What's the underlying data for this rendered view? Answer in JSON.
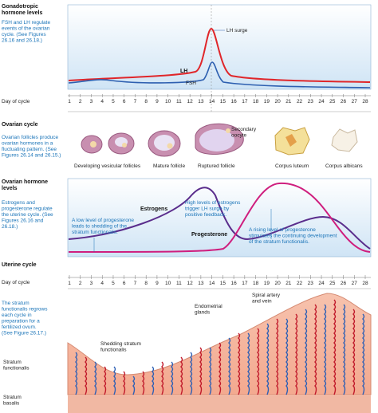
{
  "gonadotropic": {
    "title": [
      "Gonadotropic",
      "hormone levels"
    ],
    "note": [
      "FSH and LH regulate",
      "events of the ovarian",
      "cycle. (See Figures",
      "26.16 and 26.18.)"
    ],
    "lh_surge": "LH surge",
    "lh": "LH",
    "fsh": "FSH",
    "axis_label": "Day of cycle"
  },
  "days": [
    1,
    2,
    3,
    4,
    5,
    6,
    7,
    8,
    9,
    10,
    11,
    12,
    13,
    14,
    15,
    16,
    17,
    18,
    19,
    20,
    21,
    22,
    23,
    24,
    25,
    26,
    27,
    28
  ],
  "ovarian": {
    "title": "Ovarian cycle",
    "note": [
      "Ovarian follicles produce",
      "ovarian hormones in a",
      "fluctuating pattern. (See",
      "Figures 26.14 and 26.15.)"
    ],
    "secondary_oocyte": [
      "Secondary",
      "oocyte"
    ],
    "developing": "Developing vesicular follicles",
    "mature": "Mature follicle",
    "ruptured": "Ruptured follicle",
    "luteum": "Corpus luteum",
    "albicans": "Corpus albicans"
  },
  "ovarian_hormones": {
    "title": [
      "Ovarian hormone",
      "levels"
    ],
    "note": [
      "Estrogens and",
      "progesterone regulate",
      "the uterine cycle. (See",
      "Figures 26.16 and",
      "26.18.)"
    ],
    "estrogens": "Estrogens",
    "progesterone": "Progesterone",
    "high_estrogen": [
      "High levels of estrogens",
      "trigger LH surge by",
      "positive feedback."
    ],
    "low_progesterone": [
      "A low level of progesterone",
      "leads to shedding of the",
      "stratum functionalis."
    ],
    "rising_progesterone": [
      "A rising level of progesterone",
      "stimulates the continuing development",
      "of the stratum functionalis."
    ]
  },
  "uterine": {
    "title": "Uterine cycle",
    "axis_label": "Day of cycle",
    "note": [
      "The stratum",
      "functionalis regrows",
      "each cycle in",
      "preparation for a",
      "fertilized ovum.",
      "(See Figure 26.17.)"
    ],
    "glands": [
      "Endometrial",
      "glands"
    ],
    "spiral": [
      "Spiral artery",
      "and vein"
    ],
    "shedding": [
      "Shedding stratum",
      "functionalis"
    ],
    "functionalis": [
      "Stratum",
      "functionalis"
    ],
    "basalis": [
      "Stratum",
      "basalis"
    ]
  }
}
